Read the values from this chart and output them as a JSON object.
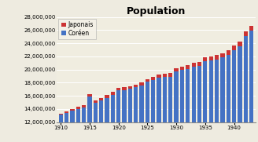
{
  "title": "Population",
  "colors": {
    "japonais": "#cc3333",
    "coreen": "#4472c4"
  },
  "background_color": "#eeebe0",
  "plot_bg": "#f0ede0",
  "years": [
    1910,
    1911,
    1912,
    1913,
    1914,
    1915,
    1916,
    1917,
    1918,
    1919,
    1920,
    1921,
    1922,
    1923,
    1924,
    1925,
    1926,
    1927,
    1928,
    1929,
    1930,
    1931,
    1932,
    1933,
    1934,
    1935,
    1936,
    1937,
    1938,
    1939,
    1940,
    1941,
    1942,
    1943
  ],
  "coreen": [
    13128000,
    13400000,
    13767000,
    14002000,
    14210000,
    15958000,
    14982000,
    15282000,
    15688000,
    16144000,
    16916000,
    16916000,
    17062000,
    17298000,
    17622000,
    18117000,
    18411000,
    18763000,
    18906000,
    18929000,
    19685000,
    19937000,
    20037000,
    20448000,
    20513000,
    21248000,
    21370000,
    21574000,
    21836000,
    22208000,
    22954000,
    23547000,
    25120000,
    25900000
  ],
  "japonais": [
    170000,
    230000,
    270000,
    330000,
    380000,
    303000,
    370000,
    400000,
    422000,
    440000,
    347000,
    370000,
    390000,
    407000,
    425000,
    424000,
    448000,
    480000,
    500000,
    520000,
    527000,
    557000,
    590000,
    620000,
    640000,
    583000,
    630000,
    650000,
    680000,
    700000,
    708000,
    700000,
    752000,
    800000
  ],
  "ylim": [
    12000000,
    28000000
  ],
  "yticks": [
    12000000,
    14000000,
    16000000,
    18000000,
    20000000,
    22000000,
    24000000,
    26000000,
    28000000
  ],
  "xticks": [
    1910,
    1915,
    1920,
    1925,
    1930,
    1935,
    1940
  ],
  "title_fontsize": 9,
  "tick_fontsize": 5,
  "legend_fontsize": 5.5
}
